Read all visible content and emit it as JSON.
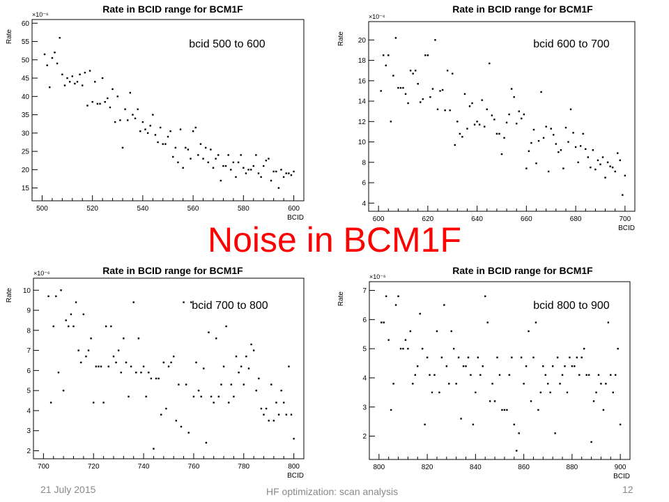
{
  "slide": {
    "title": "Noise in BCM1F",
    "title_color": "#ff0000",
    "footer_date": "21 July 2015",
    "footer_center": "HF optimization: scan analysis",
    "footer_page": "12"
  },
  "chart_data": [
    {
      "type": "scatter",
      "title": "Rate in BCID range for BCM1F",
      "annotation": "bcid 500 to 600",
      "xlabel": "BCID",
      "ylabel": "Rate",
      "y_multiplier": "×10⁻⁶",
      "xlim": [
        496,
        604
      ],
      "ylim": [
        11.5,
        61
      ],
      "xticks": [
        500,
        520,
        540,
        560,
        580,
        600
      ],
      "yticks": [
        15,
        20,
        25,
        30,
        35,
        40,
        45,
        50,
        55,
        60
      ],
      "marker_color": "#000000",
      "x": [
        501,
        502,
        503,
        504,
        505,
        506,
        507,
        508,
        509,
        510,
        511,
        512,
        513,
        514,
        515,
        516,
        517,
        518,
        519,
        520,
        521,
        522,
        523,
        524,
        525,
        526,
        527,
        528,
        529,
        530,
        531,
        532,
        533,
        534,
        535,
        536,
        537,
        538,
        539,
        540,
        541,
        542,
        543,
        544,
        545,
        546,
        547,
        548,
        549,
        550,
        551,
        552,
        553,
        554,
        555,
        556,
        557,
        558,
        559,
        560,
        561,
        562,
        563,
        564,
        565,
        566,
        567,
        568,
        569,
        570,
        571,
        572,
        573,
        574,
        575,
        576,
        577,
        578,
        579,
        580,
        581,
        582,
        583,
        584,
        585,
        586,
        587,
        588,
        589,
        590,
        591,
        592,
        593,
        594,
        595,
        596,
        597,
        598,
        599,
        600
      ],
      "y": [
        51.5,
        48.5,
        42.5,
        50.5,
        52,
        49,
        56,
        46,
        43,
        45,
        44,
        45.5,
        43.5,
        44,
        46,
        43,
        46.5,
        37.5,
        47,
        38.5,
        44,
        38,
        38,
        45,
        38.5,
        39.5,
        37,
        42,
        33,
        40,
        33.5,
        26,
        36.5,
        33.5,
        41,
        35,
        34,
        36.5,
        30.5,
        33,
        31,
        30,
        32,
        35,
        29.5,
        27.5,
        31.5,
        27,
        27,
        29,
        30.5,
        23.5,
        26,
        22,
        31,
        20.5,
        26,
        25.5,
        23,
        30.5,
        31.5,
        24,
        27,
        23,
        26,
        22,
        25.5,
        20.5,
        23,
        24,
        17,
        21,
        21,
        24,
        20,
        22,
        18,
        22,
        24,
        20.5,
        19,
        20,
        20,
        21,
        24,
        19,
        18,
        21,
        22.5,
        23,
        17,
        19.5,
        19.5,
        15,
        20,
        18,
        19,
        19,
        18.5,
        19.5
      ]
    },
    {
      "type": "scatter",
      "title": "Rate in BCID range for BCM1F",
      "annotation": "bcid 600 to 700",
      "xlabel": "BCID",
      "ylabel": "Rate",
      "y_multiplier": "×10⁻⁶",
      "xlim": [
        596,
        704
      ],
      "ylim": [
        3.2,
        21.8
      ],
      "xticks": [
        600,
        620,
        640,
        660,
        680,
        700
      ],
      "yticks": [
        4,
        6,
        8,
        10,
        12,
        14,
        16,
        18,
        20
      ],
      "marker_color": "#000000",
      "x": [
        601,
        602,
        603,
        604,
        605,
        606,
        607,
        608,
        609,
        610,
        611,
        612,
        613,
        614,
        615,
        616,
        617,
        618,
        619,
        620,
        621,
        622,
        623,
        624,
        625,
        626,
        627,
        628,
        629,
        630,
        631,
        632,
        633,
        634,
        635,
        636,
        637,
        638,
        639,
        640,
        641,
        642,
        643,
        644,
        645,
        646,
        647,
        648,
        649,
        650,
        651,
        652,
        653,
        654,
        655,
        656,
        657,
        658,
        659,
        660,
        661,
        662,
        663,
        664,
        665,
        666,
        667,
        668,
        669,
        670,
        671,
        672,
        673,
        674,
        675,
        676,
        677,
        678,
        679,
        680,
        681,
        682,
        683,
        684,
        685,
        686,
        687,
        688,
        689,
        690,
        691,
        692,
        693,
        694,
        695,
        696,
        697,
        698,
        699,
        700
      ],
      "y": [
        15,
        18.5,
        17.5,
        18.5,
        12,
        16.5,
        20.2,
        15.3,
        15.3,
        15.3,
        14.7,
        13.8,
        17,
        16.7,
        17,
        15.7,
        13.9,
        14.2,
        18.5,
        18.5,
        14.4,
        15.2,
        20,
        13.2,
        15,
        15.1,
        13.1,
        17,
        13.1,
        16.7,
        9.7,
        12,
        10.8,
        10.5,
        14.7,
        11.3,
        13.5,
        13.8,
        11.7,
        12,
        11.7,
        14.1,
        11.5,
        13.2,
        17.7,
        12.6,
        12.2,
        10.8,
        10.8,
        8.8,
        10.4,
        11.9,
        12.7,
        15.2,
        14.4,
        11.8,
        13,
        12.3,
        12.7,
        7.4,
        9.1,
        9.9,
        11.2,
        7.9,
        10.1,
        14.9,
        10.4,
        11.5,
        7.1,
        11.3,
        10.7,
        9.8,
        9,
        9.2,
        7.4,
        11.4,
        10,
        13.2,
        10.9,
        9.5,
        8,
        9.6,
        10.8,
        9.3,
        8.5,
        7.5,
        9.2,
        7.3,
        8.2,
        7.8,
        8.5,
        6.5,
        8,
        7.6,
        7.5,
        7.1,
        8.9,
        8.2,
        4.8,
        6.7
      ]
    },
    {
      "type": "scatter",
      "title": "Rate in BCID range for BCM1F",
      "annotation": "bcid 700 to 800",
      "xlabel": "BCID",
      "ylabel": "Rate",
      "y_multiplier": "×10⁻⁶",
      "xlim": [
        696,
        804
      ],
      "ylim": [
        1.6,
        10.6
      ],
      "xticks": [
        700,
        720,
        740,
        760,
        780,
        800
      ],
      "yticks": [
        2,
        3,
        4,
        5,
        6,
        7,
        8,
        9,
        10
      ],
      "marker_color": "#000000",
      "x": [
        702,
        703,
        704,
        705,
        706,
        707,
        708,
        709,
        710,
        711,
        712,
        713,
        714,
        715,
        716,
        717,
        718,
        719,
        720,
        721,
        722,
        723,
        724,
        725,
        726,
        727,
        728,
        729,
        730,
        731,
        732,
        733,
        734,
        735,
        736,
        737,
        738,
        739,
        740,
        741,
        742,
        743,
        744,
        745,
        746,
        747,
        748,
        749,
        750,
        751,
        752,
        753,
        754,
        755,
        756,
        757,
        758,
        759,
        760,
        761,
        762,
        763,
        764,
        765,
        766,
        767,
        768,
        769,
        770,
        771,
        772,
        773,
        774,
        775,
        776,
        777,
        778,
        779,
        780,
        781,
        782,
        783,
        784,
        785,
        786,
        787,
        788,
        789,
        790,
        791,
        792,
        793,
        794,
        795,
        796,
        797,
        798,
        799,
        800
      ],
      "y": [
        9.7,
        4.4,
        8.2,
        9.7,
        5.9,
        10,
        5,
        8.5,
        8.2,
        8.8,
        8.2,
        9.4,
        7,
        6.4,
        8.8,
        6.7,
        7,
        7.6,
        4.4,
        6.2,
        6.2,
        6.2,
        4.4,
        8.2,
        6.2,
        8.2,
        6.7,
        6.4,
        7,
        5.9,
        7.6,
        6.4,
        4.7,
        6.2,
        9.4,
        5.9,
        7.6,
        5.9,
        6.2,
        4.7,
        5.9,
        5.6,
        2.1,
        5.6,
        5.6,
        3.8,
        6.4,
        4.1,
        6.2,
        6.4,
        6.7,
        3.5,
        5.3,
        3.2,
        9.4,
        5.3,
        2.9,
        9.4,
        4.7,
        6.4,
        5,
        4.7,
        6.1,
        2.4,
        7.9,
        4.7,
        4.4,
        7.6,
        4.7,
        5.3,
        6.2,
        8.2,
        4.4,
        5.3,
        4.7,
        6.7,
        5.9,
        6.2,
        5.3,
        6.7,
        6.1,
        7.3,
        7,
        5,
        5.6,
        4.1,
        3.8,
        4.1,
        3.5,
        5.3,
        3.5,
        4.4,
        3.8,
        5,
        4.4,
        3.8,
        6.2,
        3.8,
        2.6
      ]
    },
    {
      "type": "scatter",
      "title": "Rate in BCID range for BCM1F",
      "annotation": "bcid 800 to 900",
      "xlabel": "BCID",
      "ylabel": "Rate",
      "y_multiplier": "×10⁻⁶",
      "xlim": [
        796,
        904
      ],
      "ylim": [
        1.2,
        7.3
      ],
      "xticks": [
        800,
        820,
        840,
        860,
        880,
        900
      ],
      "yticks": [
        2,
        3,
        4,
        5,
        6,
        7
      ],
      "marker_color": "#000000",
      "x": [
        801,
        802,
        803,
        804,
        805,
        806,
        807,
        808,
        809,
        810,
        811,
        812,
        813,
        814,
        815,
        816,
        817,
        818,
        819,
        820,
        821,
        822,
        823,
        824,
        825,
        826,
        827,
        828,
        829,
        830,
        831,
        832,
        833,
        834,
        835,
        836,
        837,
        838,
        839,
        840,
        841,
        842,
        843,
        844,
        845,
        846,
        847,
        848,
        849,
        850,
        851,
        852,
        853,
        854,
        855,
        856,
        857,
        858,
        859,
        860,
        861,
        862,
        863,
        864,
        865,
        866,
        867,
        868,
        869,
        870,
        871,
        872,
        873,
        874,
        875,
        876,
        877,
        878,
        879,
        880,
        881,
        882,
        883,
        884,
        885,
        886,
        887,
        888,
        889,
        890,
        891,
        892,
        893,
        894,
        895,
        896,
        897,
        898,
        899,
        900
      ],
      "y": [
        5.9,
        5.9,
        6.8,
        5.3,
        2.9,
        3.8,
        6.5,
        6.8,
        5,
        5,
        5.3,
        5,
        5.6,
        3.8,
        4.1,
        4.4,
        6.2,
        5,
        2.4,
        4.7,
        4.1,
        3.5,
        4.1,
        5.6,
        3.5,
        4.7,
        6.5,
        4.4,
        3.8,
        5.6,
        5,
        3.8,
        4.7,
        2.6,
        4.4,
        4.4,
        4.7,
        4.1,
        2.4,
        3.5,
        4.7,
        4.1,
        4.4,
        6.8,
        5.9,
        3.2,
        3.8,
        3.2,
        4.7,
        4.1,
        2.9,
        2.9,
        2.9,
        4.1,
        4.7,
        2.4,
        1.5,
        2.1,
        4.7,
        3.8,
        4.4,
        5.6,
        3.2,
        4.7,
        5.9,
        2.9,
        3.5,
        4.4,
        4.1,
        3.8,
        3.5,
        4.4,
        2.1,
        4.7,
        3.8,
        4.1,
        4.4,
        3.5,
        4.7,
        4.4,
        4.4,
        4.7,
        4.1,
        4.7,
        5,
        4.1,
        4.1,
        1.8,
        3.2,
        3.5,
        4.1,
        3.8,
        2.9,
        3.8,
        5.9,
        4.1,
        3.5,
        4.1,
        5,
        2.4
      ]
    }
  ]
}
